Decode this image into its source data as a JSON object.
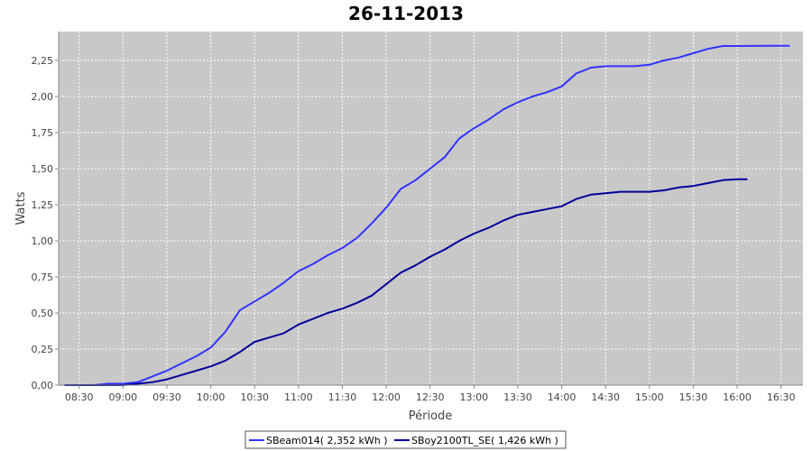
{
  "chart_data": {
    "type": "line",
    "title": "26-11-2013",
    "xlabel": "Période",
    "ylabel": "Watts",
    "x_ticks": [
      "08:30",
      "09:00",
      "09:30",
      "10:00",
      "10:30",
      "11:00",
      "11:30",
      "12:00",
      "12:30",
      "13:00",
      "13:30",
      "14:00",
      "14:30",
      "15:00",
      "15:30",
      "16:00",
      "16:30"
    ],
    "xlim": [
      "08:16",
      "16:45"
    ],
    "ylim": [
      0,
      2.45
    ],
    "y_ticks": [
      "0,00",
      "0,25",
      "0,50",
      "0,75",
      "1,00",
      "1,25",
      "1,50",
      "1,75",
      "2,00",
      "2,25"
    ],
    "y_tick_values": [
      0,
      0.25,
      0.5,
      0.75,
      1.0,
      1.25,
      1.5,
      1.75,
      2.0,
      2.25
    ],
    "grid": true,
    "legend_position": "bottom",
    "series": [
      {
        "name": "SBeam014( 2,352 kWh )",
        "color": "#3333ff",
        "points": [
          [
            "08:20",
            0.0
          ],
          [
            "08:40",
            0.0
          ],
          [
            "08:50",
            0.01
          ],
          [
            "09:00",
            0.01
          ],
          [
            "09:10",
            0.02
          ],
          [
            "09:20",
            0.06
          ],
          [
            "09:30",
            0.1
          ],
          [
            "09:40",
            0.15
          ],
          [
            "09:50",
            0.2
          ],
          [
            "10:00",
            0.26
          ],
          [
            "10:10",
            0.37
          ],
          [
            "10:20",
            0.52
          ],
          [
            "10:30",
            0.58
          ],
          [
            "10:40",
            0.64
          ],
          [
            "10:50",
            0.71
          ],
          [
            "11:00",
            0.79
          ],
          [
            "11:10",
            0.84
          ],
          [
            "11:20",
            0.9
          ],
          [
            "11:30",
            0.95
          ],
          [
            "11:40",
            1.02
          ],
          [
            "11:50",
            1.12
          ],
          [
            "12:00",
            1.23
          ],
          [
            "12:10",
            1.36
          ],
          [
            "12:20",
            1.42
          ],
          [
            "12:30",
            1.5
          ],
          [
            "12:40",
            1.58
          ],
          [
            "12:50",
            1.71
          ],
          [
            "13:00",
            1.78
          ],
          [
            "13:10",
            1.84
          ],
          [
            "13:20",
            1.91
          ],
          [
            "13:30",
            1.96
          ],
          [
            "13:40",
            2.0
          ],
          [
            "13:50",
            2.03
          ],
          [
            "14:00",
            2.07
          ],
          [
            "14:10",
            2.16
          ],
          [
            "14:20",
            2.2
          ],
          [
            "14:30",
            2.21
          ],
          [
            "14:40",
            2.21
          ],
          [
            "14:50",
            2.21
          ],
          [
            "15:00",
            2.22
          ],
          [
            "15:10",
            2.25
          ],
          [
            "15:20",
            2.27
          ],
          [
            "15:30",
            2.3
          ],
          [
            "15:40",
            2.33
          ],
          [
            "15:50",
            2.35
          ],
          [
            "16:00",
            2.35
          ],
          [
            "16:20",
            2.352
          ],
          [
            "16:36",
            2.352
          ]
        ]
      },
      {
        "name": "SBoy2100TL_SE( 1,426 kWh )",
        "color": "#000099",
        "points": [
          [
            "08:20",
            0.0
          ],
          [
            "09:00",
            0.0
          ],
          [
            "09:10",
            0.01
          ],
          [
            "09:20",
            0.02
          ],
          [
            "09:30",
            0.04
          ],
          [
            "09:40",
            0.07
          ],
          [
            "09:50",
            0.1
          ],
          [
            "10:00",
            0.13
          ],
          [
            "10:10",
            0.17
          ],
          [
            "10:20",
            0.23
          ],
          [
            "10:30",
            0.3
          ],
          [
            "10:40",
            0.33
          ],
          [
            "10:50",
            0.36
          ],
          [
            "11:00",
            0.42
          ],
          [
            "11:10",
            0.46
          ],
          [
            "11:20",
            0.5
          ],
          [
            "11:30",
            0.53
          ],
          [
            "11:40",
            0.57
          ],
          [
            "11:50",
            0.62
          ],
          [
            "12:00",
            0.7
          ],
          [
            "12:10",
            0.78
          ],
          [
            "12:20",
            0.83
          ],
          [
            "12:30",
            0.89
          ],
          [
            "12:40",
            0.94
          ],
          [
            "12:50",
            1.0
          ],
          [
            "13:00",
            1.05
          ],
          [
            "13:10",
            1.09
          ],
          [
            "13:20",
            1.14
          ],
          [
            "13:30",
            1.18
          ],
          [
            "13:40",
            1.2
          ],
          [
            "13:50",
            1.22
          ],
          [
            "14:00",
            1.24
          ],
          [
            "14:10",
            1.29
          ],
          [
            "14:20",
            1.32
          ],
          [
            "14:30",
            1.33
          ],
          [
            "14:40",
            1.34
          ],
          [
            "14:50",
            1.34
          ],
          [
            "15:00",
            1.34
          ],
          [
            "15:10",
            1.35
          ],
          [
            "15:20",
            1.37
          ],
          [
            "15:30",
            1.38
          ],
          [
            "15:40",
            1.4
          ],
          [
            "15:50",
            1.42
          ],
          [
            "16:00",
            1.426
          ],
          [
            "16:07",
            1.426
          ]
        ]
      }
    ]
  }
}
